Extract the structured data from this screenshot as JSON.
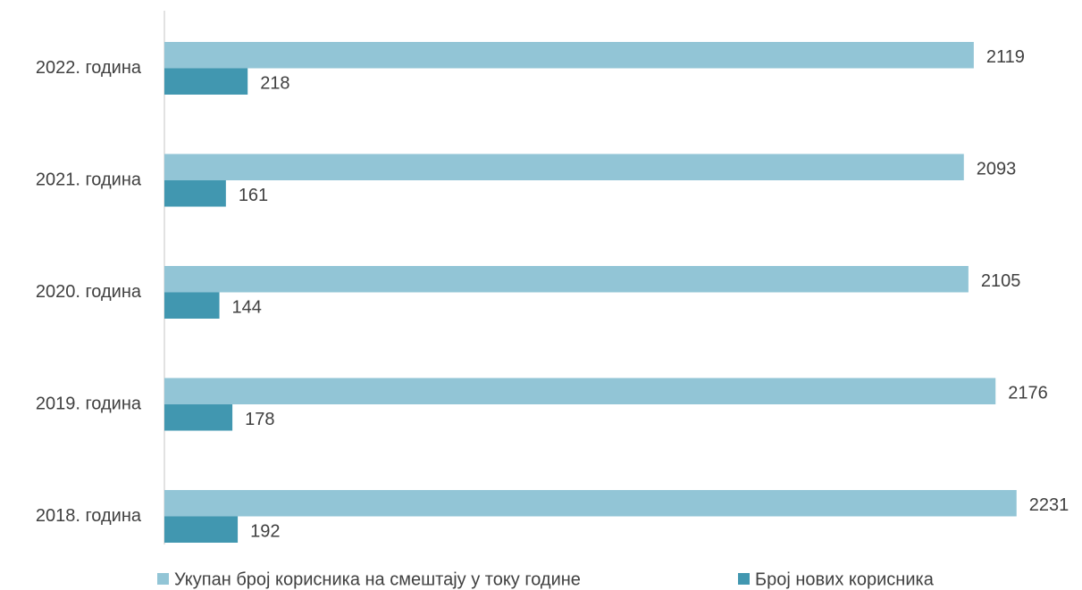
{
  "chart_data": {
    "type": "hbar",
    "categories": [
      "2022. година",
      "2021. година",
      "2020. година",
      "2019. година",
      "2018. година"
    ],
    "series": [
      {
        "name": "Укупан број корисника на смештају у току године",
        "color": "#92c5d6",
        "values": [
          2119,
          2093,
          2105,
          2176,
          2231
        ]
      },
      {
        "name": "Број нових корисника",
        "color": "#4197b0",
        "values": [
          218,
          161,
          144,
          178,
          192
        ]
      }
    ],
    "xlim": [
      0,
      2400
    ],
    "legend": "bottom"
  }
}
